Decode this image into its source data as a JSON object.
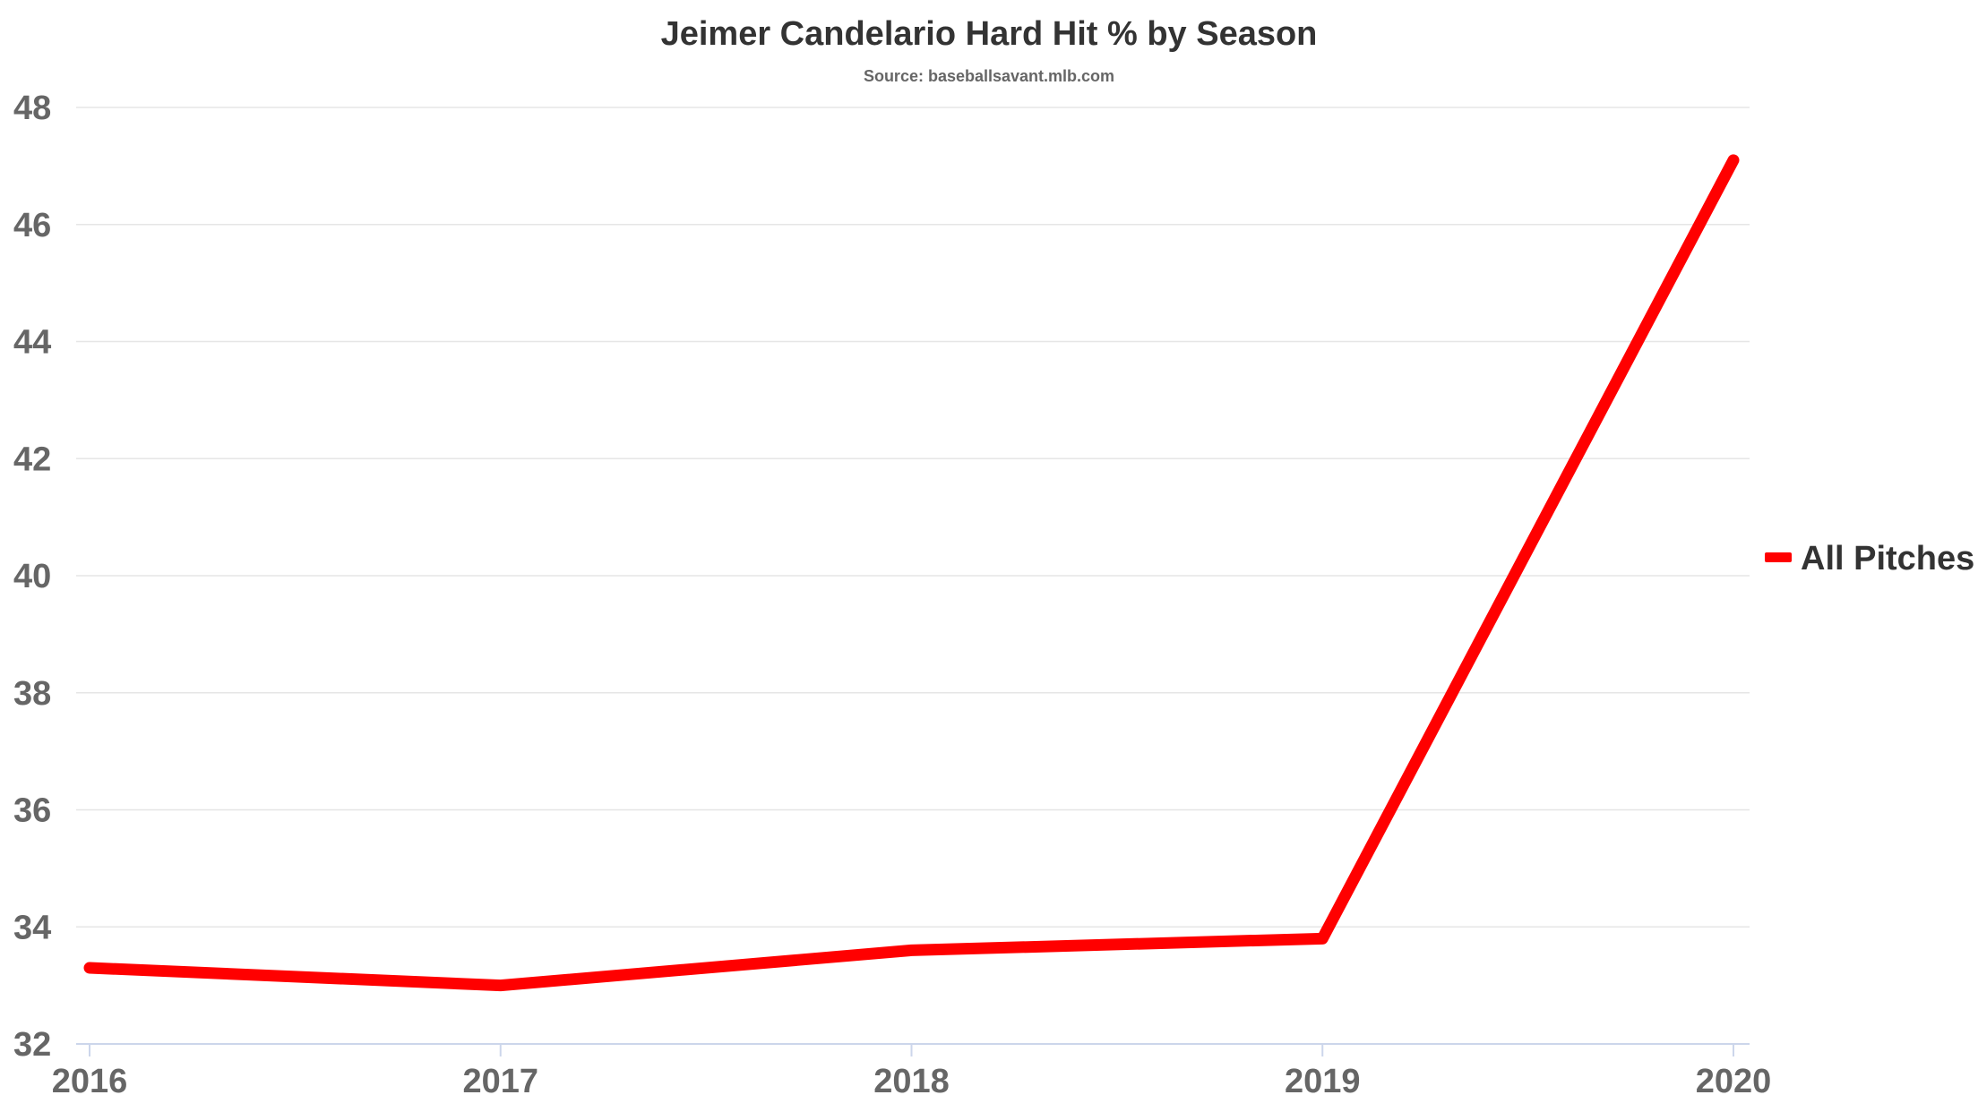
{
  "chart_data": {
    "type": "line",
    "title": "Jeimer Candelario Hard Hit % by Season",
    "subtitle": "Source: baseballsavant.mlb.com",
    "xlabel": "",
    "ylabel": "",
    "categories": [
      "2016",
      "2017",
      "2018",
      "2019",
      "2020"
    ],
    "series": [
      {
        "name": "All Pitches",
        "values": [
          33.3,
          33.0,
          33.6,
          33.8,
          47.1
        ],
        "color": "#ff0000"
      }
    ],
    "ylim": [
      32,
      48
    ],
    "yticks": [
      "32",
      "34",
      "36",
      "38",
      "40",
      "42",
      "44",
      "46",
      "48"
    ],
    "grid": true,
    "legend_position": "right"
  }
}
